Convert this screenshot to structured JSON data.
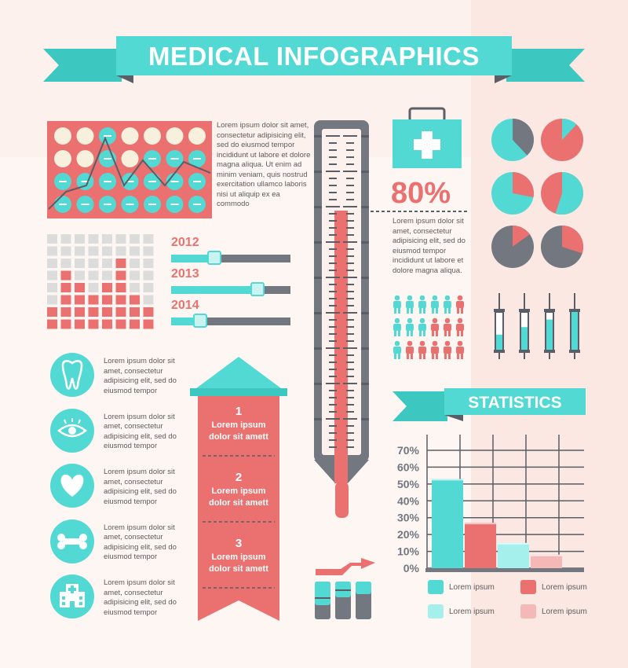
{
  "title": "MEDICAL INFOGRAPHICS",
  "colors": {
    "teal": "#52d9d3",
    "coral": "#ea716f",
    "gray": "#727780",
    "cream": "#f6f0dc",
    "light_teal": "#a5efed",
    "light_coral": "#f4b9b7",
    "bg": "#fdf1ed"
  },
  "pill_text": "Lorem ipsum dolor sit amet, consectetur adipisicing elit, sed do eiusmod tempor incididunt ut labore et dolore magna aliqua. Ut enim ad minim veniam, quis nostrud exercitation ullamco laboris nisi ut aliquip ex ea commodo",
  "years": [
    {
      "label": "2012",
      "level": 0.37
    },
    {
      "label": "2013",
      "level": 0.73
    },
    {
      "label": "2014",
      "level": 0.25
    }
  ],
  "percent": "80%",
  "percent_text": "Lorem ipsum dolor sit amet, consectetur adipisicing elit, sed do eiusmod tempor incididunt ut labore et dolore magna aliqua.",
  "icons": [
    {
      "icon": "tooth-icon",
      "text": "Lorem ipsum dolor sit amet, consectetur adipisicing elit, sed do eiusmod tempor"
    },
    {
      "icon": "eye-icon",
      "text": "Lorem ipsum dolor sit amet, consectetur adipisicing elit, sed do eiusmod tempor"
    },
    {
      "icon": "heart-icon",
      "text": "Lorem ipsum dolor sit amet, consectetur adipisicing elit, sed do eiusmod tempor"
    },
    {
      "icon": "bone-icon",
      "text": "Lorem ipsum dolor sit amet, consectetur adipisicing elit, sed do eiusmod tempor"
    },
    {
      "icon": "hospital-icon",
      "text": "Lorem ipsum dolor sit amet, consectetur adipisicing elit, sed do eiusmod tempor"
    }
  ],
  "steps": [
    {
      "num": "1",
      "line1": "Lorem ipsum",
      "line2": "dolor sit amett"
    },
    {
      "num": "2",
      "line1": "Lorem ipsum",
      "line2": "dolor sit amett"
    },
    {
      "num": "3",
      "line1": "Lorem ipsum",
      "line2": "dolor sit amett"
    }
  ],
  "statistics_title": "STATISTICS",
  "chart_data": {
    "type": "bar",
    "title": "STATISTICS",
    "y_ticks": [
      "0%",
      "10%",
      "20%",
      "30%",
      "40%",
      "50%",
      "60%",
      "70%"
    ],
    "ylim": [
      0,
      75
    ],
    "grid": true,
    "series": [
      {
        "value": 53,
        "color": "#52d9d3"
      },
      {
        "value": 27,
        "color": "#ea716f"
      },
      {
        "value": 15,
        "color": "#a5efed"
      },
      {
        "value": 8,
        "color": "#f4b9b7"
      }
    ],
    "legend": [
      {
        "label": "Lorem ipsum",
        "color": "#52d9d3"
      },
      {
        "label": "Lorem ipsum",
        "color": "#ea716f"
      },
      {
        "label": "Lorem ipsum",
        "color": "#a5efed"
      },
      {
        "label": "Lorem ipsum",
        "color": "#f4b9b7"
      }
    ],
    "legend_placement": "bottom"
  }
}
